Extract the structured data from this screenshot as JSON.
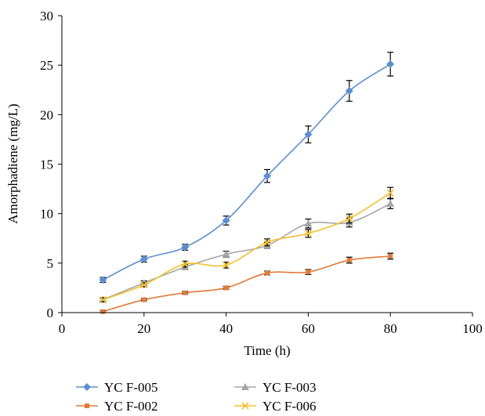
{
  "chart_data": {
    "type": "line",
    "title": "",
    "xlabel": "Time (h)",
    "ylabel": "Amorphadiene (mg/L)",
    "xlim": [
      0,
      100
    ],
    "ylim": [
      0,
      30
    ],
    "x_ticks": [
      0,
      20,
      40,
      60,
      80,
      100
    ],
    "y_ticks": [
      0,
      5,
      10,
      15,
      20,
      25,
      30
    ],
    "grid": false,
    "legend_position": "bottom",
    "series": [
      {
        "name": "YC F-005",
        "color": "#5b8fd0",
        "marker": "diamond",
        "x": [
          10,
          20,
          30,
          40,
          50,
          60,
          70,
          80
        ],
        "y": [
          3.3,
          5.4,
          6.6,
          9.3,
          13.8,
          18.0,
          22.4,
          25.1
        ],
        "err": [
          0.25,
          0.3,
          0.3,
          0.45,
          0.65,
          0.85,
          1.05,
          1.2
        ]
      },
      {
        "name": "YC F-002",
        "color": "#e07b39",
        "marker": "square",
        "x": [
          10,
          20,
          30,
          40,
          50,
          60,
          70,
          80
        ],
        "y": [
          0.1,
          1.3,
          2.0,
          2.5,
          4.0,
          4.1,
          5.3,
          5.7
        ],
        "err": [
          0.1,
          0.1,
          0.12,
          0.15,
          0.2,
          0.25,
          0.3,
          0.3
        ]
      },
      {
        "name": "YC F-003",
        "color": "#a5a5a5",
        "marker": "triangle",
        "x": [
          10,
          20,
          30,
          40,
          50,
          60,
          70,
          80
        ],
        "y": [
          1.3,
          3.0,
          4.6,
          5.9,
          6.8,
          9.0,
          9.1,
          11.0
        ],
        "err": [
          0.15,
          0.2,
          0.25,
          0.3,
          0.3,
          0.45,
          0.45,
          0.5
        ]
      },
      {
        "name": "YC F-006",
        "color": "#f2c12e",
        "marker": "x",
        "x": [
          10,
          20,
          30,
          40,
          50,
          60,
          70,
          80
        ],
        "y": [
          1.3,
          2.8,
          4.9,
          4.8,
          7.1,
          8.0,
          9.5,
          12.1
        ],
        "err": [
          0.2,
          0.2,
          0.3,
          0.3,
          0.35,
          0.4,
          0.45,
          0.55
        ]
      }
    ]
  }
}
